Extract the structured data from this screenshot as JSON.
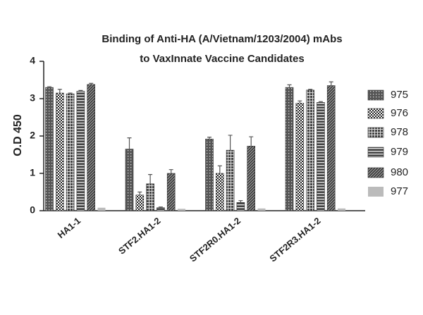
{
  "chart_data": {
    "type": "bar",
    "title": [
      "Binding of Anti-HA (A/Vietnam/1203/2004) mAbs",
      "to VaxInnate Vaccine Candidates"
    ],
    "y_label": "O.D 450",
    "categories": [
      "HA1-1",
      "STF2.HA1-2",
      "STF2R0.HA1-2",
      "STF2R3.HA1-2"
    ],
    "ylim": [
      0,
      4
    ],
    "yticks": [
      0,
      1,
      2,
      3,
      4
    ],
    "series": [
      {
        "name": "975",
        "color": "#555555",
        "pattern": "dots",
        "values": [
          3.3,
          1.65,
          1.92,
          3.3
        ],
        "errors": [
          0.02,
          0.3,
          0.05,
          0.07
        ]
      },
      {
        "name": "976",
        "color": "#222222",
        "pattern": "checker",
        "values": [
          3.15,
          0.42,
          1.0,
          2.88
        ],
        "errors": [
          0.1,
          0.08,
          0.2,
          0.06
        ]
      },
      {
        "name": "978",
        "color": "#444444",
        "pattern": "grid",
        "values": [
          3.13,
          0.72,
          1.62,
          3.23
        ],
        "errors": [
          0.02,
          0.25,
          0.4,
          0.02
        ]
      },
      {
        "name": "979",
        "color": "#444444",
        "pattern": "stripes",
        "values": [
          3.2,
          0.08,
          0.22,
          2.9
        ],
        "errors": [
          0.02,
          0.02,
          0.05,
          0.02
        ]
      },
      {
        "name": "980",
        "color": "#3a3a3a",
        "pattern": "diagonal",
        "values": [
          3.38,
          1.0,
          1.73,
          3.35
        ],
        "errors": [
          0.03,
          0.1,
          0.25,
          0.1
        ]
      },
      {
        "name": "977",
        "color": "#bbbbbb",
        "pattern": "solid",
        "values": [
          0.08,
          0.05,
          0.06,
          0.06
        ],
        "errors": [
          0,
          0,
          0,
          0
        ]
      }
    ]
  }
}
